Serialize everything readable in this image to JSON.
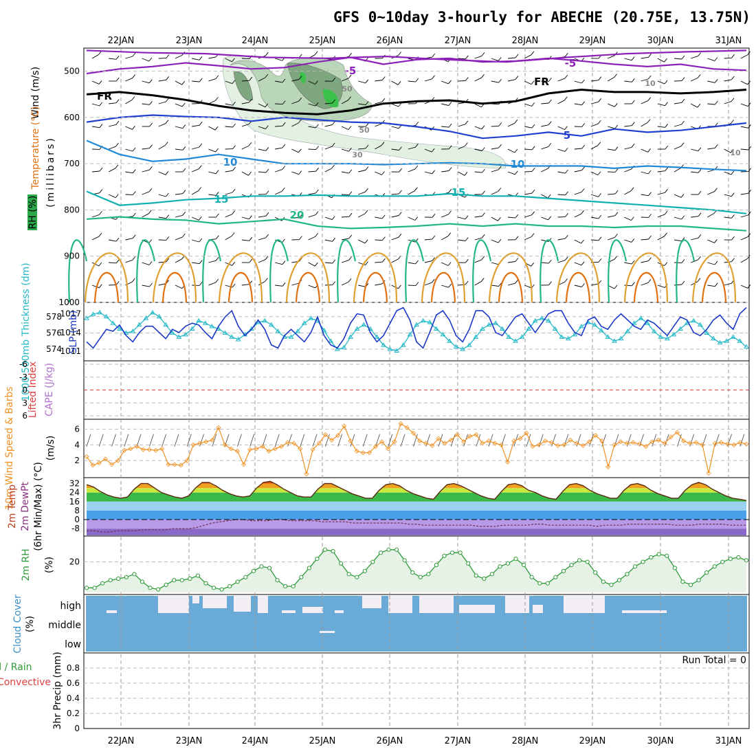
{
  "title": "GFS 0~10day 3-hourly for ABECHE (20.75E, 13.75N)",
  "colors": {
    "purple": "#8b1fb8",
    "black": "#000000",
    "blue": "#1f3fd0",
    "skyblue": "#1e88d8",
    "teal": "#10b0b0",
    "green": "#20b880",
    "orange": "#e0a030",
    "darkorange": "#e07010",
    "magenta": "#d0108a",
    "rh_fill": "#2aa84a",
    "slp": "#1a37c8",
    "thick": "#22b8c8",
    "wind": "#f09020",
    "rh2m": "#2f9a3a",
    "cloud": "#6aaad6",
    "cape_line": "#e04040"
  },
  "chart_data": [
    {
      "type": "line",
      "panel": "upper-air",
      "title": "",
      "ylabel": [
        "Wind (m/s)",
        "Temperature (°C)",
        "RH (%)",
        "(millibars)"
      ],
      "y_ticks": [
        500,
        600,
        700,
        800,
        900,
        1000
      ],
      "x_labels": [
        "22JAN",
        "23JAN",
        "24JAN",
        "25JAN",
        "26JAN",
        "27JAN",
        "28JAN",
        "29JAN",
        "30JAN",
        "31JAN"
      ],
      "contour_labels": [
        "-5",
        "-5",
        "FR",
        "FR",
        "5",
        "10",
        "10",
        "15",
        "15",
        "20",
        "10",
        "10",
        "50",
        "50",
        "30"
      ],
      "series": [
        {
          "name": "-5",
          "values": [
            455,
            460,
            462,
            470,
            472,
            468,
            475,
            480,
            470,
            462,
            458,
            455
          ]
        },
        {
          "name": "-5",
          "values": [
            505,
            495,
            490,
            482,
            488,
            495,
            492,
            480,
            470,
            485,
            475,
            472,
            480,
            478,
            472,
            478,
            485,
            490,
            485,
            495,
            498
          ]
        },
        {
          "name": "FR",
          "values": [
            550,
            545,
            552,
            562,
            575,
            585,
            590,
            593,
            585,
            570,
            565,
            563,
            570,
            565,
            548,
            540,
            545,
            545,
            548,
            545,
            540
          ]
        },
        {
          "name": "5",
          "values": [
            610,
            600,
            595,
            598,
            600,
            608,
            600,
            605,
            610,
            612,
            620,
            630,
            645,
            640,
            632,
            640,
            625,
            632,
            628,
            620,
            612
          ]
        },
        {
          "name": "10",
          "values": [
            650,
            680,
            695,
            690,
            680,
            690,
            700,
            700,
            700,
            702,
            700,
            698,
            700,
            705,
            705,
            705,
            710,
            705,
            708,
            712,
            715
          ]
        },
        {
          "name": "15",
          "values": [
            760,
            790,
            785,
            778,
            775,
            770,
            770,
            768,
            770,
            770,
            770,
            765,
            770,
            770,
            775,
            780,
            785,
            790,
            795,
            800,
            808
          ]
        },
        {
          "name": "20",
          "values": [
            820,
            815,
            820,
            822,
            830,
            825,
            820,
            835,
            840,
            838,
            835,
            830,
            835,
            830,
            835,
            835,
            838,
            835,
            835,
            840,
            845
          ]
        }
      ]
    },
    {
      "type": "line",
      "panel": "slp-thickness",
      "ylabel": [
        "1000-500mb Thickness (dm)",
        "SLP (mb)"
      ],
      "left_ticks": [
        574,
        576,
        578
      ],
      "right_ticks": [
        1011,
        1014,
        1017
      ],
      "series": [
        {
          "name": "SLP (mb)",
          "axis": "right",
          "values": [
            1012.5,
            1011.5,
            1013,
            1014.5,
            1014.2,
            1015.2,
            1013.5,
            1012.5,
            1014,
            1015,
            1015,
            1014,
            1013,
            1014.5,
            1014,
            1015,
            1015.5,
            1015.2,
            1014,
            1013,
            1015,
            1016.5,
            1017.5,
            1015,
            1013.5,
            1014.5,
            1016,
            1014.5,
            1012,
            1011.5,
            1013.5,
            1014.5,
            1013.5,
            1012.5,
            1014,
            1016.5,
            1013.5,
            1012,
            1011.5,
            1013,
            1015.5,
            1017,
            1016.8,
            1014,
            1012.5,
            1013.5,
            1015.5,
            1017.5,
            1018,
            1016,
            1012.5,
            1011.5,
            1014,
            1016.8,
            1017.5,
            1016,
            1013.5,
            1012.5,
            1014.5,
            1017.5,
            1017.5,
            1016.5,
            1014,
            1013.5,
            1015,
            1016.5,
            1017,
            1015.5,
            1014,
            1015.5,
            1017,
            1017.5,
            1017.5,
            1015.5,
            1014,
            1013.5,
            1016,
            1016.5,
            1015,
            1014.5,
            1016,
            1017,
            1016,
            1015,
            1014.5,
            1016,
            1015.5,
            1014.5,
            1013.5,
            1015,
            1016.5,
            1016,
            1014,
            1013.5,
            1014.5,
            1016,
            1016.8,
            1015.5,
            1014.5,
            1017,
            1018
          ]
        },
        {
          "name": "Thickness (dm)",
          "axis": "left",
          "values": [
            577.8,
            578.3,
            578.5,
            578.0,
            577.2,
            576.5,
            576.0,
            576.2,
            577.0,
            577.8,
            578.5,
            578.0,
            577.0,
            576.0,
            575.5,
            575.8,
            576.5,
            577.5,
            577.2,
            576.8,
            576.5,
            576.0,
            575.5,
            575.2,
            575.8,
            576.5,
            577.3,
            577.5,
            577.0,
            576.2,
            575.5,
            575.5,
            576.2,
            577.2,
            577.8,
            577.5,
            576.3,
            575.0,
            574.0,
            574.2,
            575.5,
            576.5,
            577.0,
            576.5,
            575.5,
            574.5,
            574.0,
            573.8,
            574.5,
            575.8,
            577.0,
            577.5,
            577.3,
            576.5,
            575.8,
            575.0,
            574.3,
            574.0,
            574.5,
            575.5,
            576.5,
            577.0,
            577.2,
            576.5,
            575.5,
            575.0,
            575.5,
            576.5,
            577.5,
            577.8,
            577.5,
            576.5,
            575.5,
            575.3,
            575.8,
            576.8,
            577.3,
            577.0,
            576.3,
            575.5,
            575.0,
            575.3,
            576.2,
            577.2,
            577.8,
            577.2,
            576.2,
            575.5,
            575.3,
            575.8,
            576.5,
            577.2,
            577.5,
            577.0,
            576.0,
            575.3,
            574.8,
            575.0,
            575.5,
            575.0,
            574.3
          ]
        }
      ]
    },
    {
      "type": "line",
      "panel": "cape-lifted",
      "ylabel": [
        "Lifted Index",
        "CAPE (J/kg)"
      ],
      "left_ticks": [
        "-6",
        "-3",
        "0",
        "3",
        "6"
      ],
      "series": []
    },
    {
      "type": "line",
      "panel": "wind10m",
      "ylabel": [
        "10m Wind Speed & Barbs",
        "(m/s)"
      ],
      "y_ticks": [
        2,
        4,
        6
      ],
      "series": [
        {
          "name": "10m Wind Speed (m/s)",
          "values": [
            2.5,
            1.4,
            1.7,
            2.2,
            1.5,
            2.0,
            3.3,
            3.5,
            3.8,
            3.4,
            3.4,
            3.3,
            3.5,
            1.5,
            1.5,
            1.4,
            2.0,
            4.0,
            4.2,
            4.4,
            4.6,
            6.2,
            4.0,
            3.5,
            3.2,
            1.5,
            3.4,
            3.5,
            3.8,
            3.2,
            3.5,
            3.8,
            4.3,
            4.2,
            3.5,
            0.3,
            3.4,
            4.2,
            5.3,
            4.6,
            5.2,
            6.4,
            4.5,
            3.2,
            3.0,
            3.0,
            3.8,
            4.4,
            3.5,
            4.4,
            6.7,
            6.2,
            5.5,
            4.5,
            4.2,
            3.9,
            4.8,
            4.2,
            4.6,
            5.3,
            4.4,
            5.1,
            5.3,
            4.2,
            4.5,
            4.2,
            4.0,
            1.8,
            4.5,
            4.8,
            5.5,
            3.8,
            4.0,
            4.5,
            4.3,
            3.9,
            4.0,
            4.6,
            4.2,
            3.9,
            4.4,
            5.2,
            4.5,
            1.2,
            4.0,
            4.4,
            4.2,
            4.3,
            4.1,
            3.8,
            4.4,
            4.6,
            4.2,
            5.0,
            5.6,
            4.5,
            4.2,
            4.3,
            4.0,
            0.4,
            4.2,
            4.3,
            4.1,
            4.0,
            4.3,
            4.1
          ]
        }
      ]
    },
    {
      "type": "area",
      "panel": "temp2m",
      "ylabel": [
        "2m Temp",
        "2m DewPt",
        "(6hr Min/Max) (°C)"
      ],
      "y_ticks": [
        "-8",
        "0",
        "8",
        "16",
        "24",
        "32"
      ],
      "series": [
        {
          "name": "2m Temp",
          "values": [
            31,
            29,
            25,
            22,
            20,
            19,
            20,
            27,
            32,
            32,
            28,
            24,
            22,
            20,
            19,
            21,
            28,
            33,
            33,
            30,
            26,
            23,
            21,
            20,
            21,
            28,
            33,
            34,
            31,
            27,
            24,
            21,
            20,
            20,
            27,
            32,
            32,
            29,
            26,
            23,
            21,
            19,
            19,
            26,
            31,
            32,
            30,
            26,
            23,
            21,
            19,
            18,
            25,
            31,
            32,
            30,
            27,
            24,
            21,
            19,
            18,
            25,
            31,
            32,
            30,
            26,
            24,
            21,
            19,
            18,
            25,
            31,
            32,
            30,
            26,
            23,
            21,
            19,
            19,
            26,
            31,
            32,
            30,
            26,
            23,
            21,
            19,
            19,
            26,
            31,
            33,
            31,
            27,
            24,
            21,
            19,
            18,
            17
          ]
        },
        {
          "name": "2m DewPt",
          "values": [
            -10,
            -10,
            -11,
            -11,
            -10,
            -10,
            -10,
            -9,
            -9,
            -9,
            -9,
            -8,
            -8,
            -8,
            -7,
            -5,
            -3,
            -2,
            -1,
            0,
            0,
            -1,
            -1,
            -1,
            0,
            0,
            -1,
            -1,
            -1,
            -1,
            -2,
            -2,
            -2,
            -2,
            -3,
            -3,
            -3,
            -3,
            -3,
            -3,
            -3,
            -4,
            -4,
            -5,
            -5,
            -5,
            -5,
            -5,
            -5,
            -5,
            -6,
            -6,
            -6,
            -5,
            -5,
            -5,
            -5,
            -4,
            -4,
            -5,
            -5,
            -5,
            -5,
            -5,
            -5,
            -6,
            -5,
            -5,
            -5,
            -4,
            -4,
            -4,
            -4,
            -4,
            -4,
            -5,
            -5,
            -5,
            -4,
            -4,
            -4,
            -4,
            -5,
            -5,
            -5
          ]
        }
      ]
    },
    {
      "type": "area",
      "panel": "rh2m",
      "ylabel": [
        "2m RH",
        "(%)"
      ],
      "y_ticks": [
        20
      ],
      "series": [
        {
          "name": "2m RH (%)",
          "values": [
            3,
            3,
            6,
            8,
            9,
            10,
            12,
            7,
            3,
            2,
            5,
            8,
            8,
            9,
            11,
            6,
            3,
            2,
            4,
            7,
            10,
            14,
            17,
            16,
            8,
            4,
            4,
            10,
            16,
            22,
            28,
            27,
            19,
            12,
            10,
            14,
            20,
            26,
            28,
            28,
            21,
            13,
            10,
            12,
            18,
            24,
            26,
            26,
            19,
            11,
            9,
            12,
            17,
            19,
            22,
            18,
            10,
            6,
            6,
            10,
            14,
            18,
            21,
            20,
            13,
            7,
            5,
            8,
            12,
            17,
            20,
            23,
            25,
            24,
            16,
            7,
            5,
            8,
            13,
            17,
            20,
            22,
            23,
            21
          ]
        }
      ]
    },
    {
      "type": "heatmap",
      "panel": "cloud-cover",
      "ylabel": [
        "Cloud Cover",
        "(%)"
      ],
      "level_labels": [
        "high",
        "middle",
        "low"
      ]
    },
    {
      "type": "bar",
      "panel": "precip",
      "ylabel": [
        "Total / Rain",
        "Convective",
        "3hr Precip (mm)"
      ],
      "y_ticks": [
        "0",
        "0.2",
        "0.4",
        "0.6",
        "0.8"
      ],
      "annotation": "Run Total = 0",
      "values": []
    }
  ]
}
